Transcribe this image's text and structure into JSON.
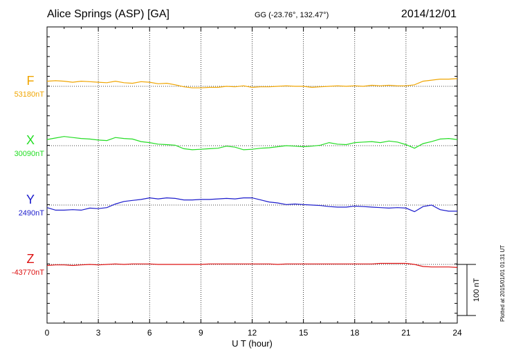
{
  "header": {
    "station": "Alice Springs (ASP)  [GA]",
    "coords": "GG (-23.76°, 132.47°)",
    "date": "2014/12/01"
  },
  "plotted_note": "Plotted at 2015/01/01 01:31  UT",
  "scale_label": "100 nT",
  "chart_data": {
    "type": "line",
    "xlabel": "U T (hour)",
    "xlim": [
      0,
      24
    ],
    "xticks": [
      "0",
      "3",
      "6",
      "9",
      "12",
      "15",
      "18",
      "21",
      "24"
    ],
    "grid": true,
    "scale_bar_nT": 100,
    "series": [
      {
        "name": "F",
        "baseline_label": "53180nT",
        "baseline": 53180,
        "color": "#f0a500",
        "points": [
          [
            0,
            53190
          ],
          [
            0.5,
            53191
          ],
          [
            1,
            53190
          ],
          [
            1.5,
            53188
          ],
          [
            2,
            53190
          ],
          [
            2.5,
            53189
          ],
          [
            3,
            53188
          ],
          [
            3.5,
            53187
          ],
          [
            4,
            53190
          ],
          [
            4.5,
            53187
          ],
          [
            5,
            53186
          ],
          [
            5.5,
            53189
          ],
          [
            6,
            53188
          ],
          [
            6.5,
            53185
          ],
          [
            7,
            53186
          ],
          [
            7.5,
            53183
          ],
          [
            8,
            53179
          ],
          [
            8.5,
            53177
          ],
          [
            9,
            53177
          ],
          [
            9.5,
            53178
          ],
          [
            10,
            53178
          ],
          [
            10.5,
            53180
          ],
          [
            11,
            53179
          ],
          [
            11.5,
            53181
          ],
          [
            12,
            53178
          ],
          [
            12.5,
            53179
          ],
          [
            13,
            53179
          ],
          [
            13.5,
            53180
          ],
          [
            14,
            53181
          ],
          [
            14.5,
            53180
          ],
          [
            15,
            53180
          ],
          [
            15.5,
            53178
          ],
          [
            16,
            53179
          ],
          [
            16.5,
            53180
          ],
          [
            17,
            53181
          ],
          [
            17.5,
            53180
          ],
          [
            18,
            53181
          ],
          [
            18.5,
            53180
          ],
          [
            19,
            53182
          ],
          [
            19.5,
            53181
          ],
          [
            20,
            53182
          ],
          [
            20.5,
            53181
          ],
          [
            21,
            53181
          ],
          [
            21.5,
            53183
          ],
          [
            22,
            53190
          ],
          [
            22.5,
            53192
          ],
          [
            23,
            53194
          ],
          [
            23.5,
            53194
          ],
          [
            24,
            53195
          ]
        ]
      },
      {
        "name": "X",
        "baseline_label": "30090nT",
        "baseline": 30090,
        "color": "#22dd22",
        "points": [
          [
            0,
            30102
          ],
          [
            0.5,
            30105
          ],
          [
            1,
            30108
          ],
          [
            1.5,
            30106
          ],
          [
            2,
            30104
          ],
          [
            2.5,
            30103
          ],
          [
            3,
            30101
          ],
          [
            3.5,
            30100
          ],
          [
            4,
            30106
          ],
          [
            4.5,
            30104
          ],
          [
            5,
            30103
          ],
          [
            5.5,
            30098
          ],
          [
            6,
            30096
          ],
          [
            6.5,
            30093
          ],
          [
            7,
            30092
          ],
          [
            7.5,
            30091
          ],
          [
            8,
            30084
          ],
          [
            8.5,
            30082
          ],
          [
            9,
            30083
          ],
          [
            9.5,
            30084
          ],
          [
            10,
            30085
          ],
          [
            10.5,
            30089
          ],
          [
            11,
            30087
          ],
          [
            11.5,
            30082
          ],
          [
            12,
            30083
          ],
          [
            12.5,
            30085
          ],
          [
            13,
            30086
          ],
          [
            13.5,
            30088
          ],
          [
            14,
            30090
          ],
          [
            14.5,
            30089
          ],
          [
            15,
            30088
          ],
          [
            15.5,
            30089
          ],
          [
            16,
            30091
          ],
          [
            16.5,
            30096
          ],
          [
            17,
            30093
          ],
          [
            17.5,
            30092
          ],
          [
            18,
            30096
          ],
          [
            18.5,
            30097
          ],
          [
            19,
            30098
          ],
          [
            19.5,
            30096
          ],
          [
            20,
            30099
          ],
          [
            20.5,
            30097
          ],
          [
            21,
            30092
          ],
          [
            21.5,
            30085
          ],
          [
            22,
            30094
          ],
          [
            22.5,
            30098
          ],
          [
            23,
            30103
          ],
          [
            23.5,
            30104
          ],
          [
            24,
            30102
          ]
        ]
      },
      {
        "name": "Y",
        "baseline_label": "2490nT",
        "baseline": 2490,
        "color": "#1a1acc",
        "points": [
          [
            0,
            2485
          ],
          [
            0.5,
            2480
          ],
          [
            1,
            2480
          ],
          [
            1.5,
            2481
          ],
          [
            2,
            2480
          ],
          [
            2.5,
            2484
          ],
          [
            3,
            2483
          ],
          [
            3.5,
            2485
          ],
          [
            4,
            2492
          ],
          [
            4.5,
            2497
          ],
          [
            5,
            2499
          ],
          [
            5.5,
            2501
          ],
          [
            6,
            2504
          ],
          [
            6.5,
            2502
          ],
          [
            7,
            2504
          ],
          [
            7.5,
            2503
          ],
          [
            8,
            2500
          ],
          [
            8.5,
            2500
          ],
          [
            9,
            2501
          ],
          [
            9.5,
            2501
          ],
          [
            10,
            2502
          ],
          [
            10.5,
            2503
          ],
          [
            11,
            2502
          ],
          [
            11.5,
            2504
          ],
          [
            12,
            2504
          ],
          [
            12.5,
            2500
          ],
          [
            13,
            2496
          ],
          [
            13.5,
            2494
          ],
          [
            14,
            2491
          ],
          [
            14.5,
            2492
          ],
          [
            15,
            2491
          ],
          [
            15.5,
            2490
          ],
          [
            16,
            2489
          ],
          [
            16.5,
            2487
          ],
          [
            17,
            2486
          ],
          [
            17.5,
            2486
          ],
          [
            18,
            2488
          ],
          [
            18.5,
            2487
          ],
          [
            19,
            2486
          ],
          [
            19.5,
            2485
          ],
          [
            20,
            2484
          ],
          [
            20.5,
            2485
          ],
          [
            21,
            2484
          ],
          [
            21.5,
            2477
          ],
          [
            22,
            2487
          ],
          [
            22.5,
            2490
          ],
          [
            23,
            2481
          ],
          [
            23.5,
            2478
          ],
          [
            24,
            2478
          ]
        ]
      },
      {
        "name": "Z",
        "baseline_label": "-43770nT",
        "baseline": -43770,
        "color": "#dd1111",
        "points": [
          [
            0,
            -43772
          ],
          [
            0.5,
            -43771
          ],
          [
            1,
            -43771
          ],
          [
            1.5,
            -43772
          ],
          [
            2,
            -43771
          ],
          [
            2.5,
            -43770
          ],
          [
            3,
            -43771
          ],
          [
            3.5,
            -43770
          ],
          [
            4,
            -43769
          ],
          [
            4.5,
            -43770
          ],
          [
            5,
            -43769
          ],
          [
            5.5,
            -43769
          ],
          [
            6,
            -43769
          ],
          [
            6.5,
            -43770
          ],
          [
            7,
            -43770
          ],
          [
            7.5,
            -43770
          ],
          [
            8,
            -43770
          ],
          [
            8.5,
            -43770
          ],
          [
            9,
            -43770
          ],
          [
            9.5,
            -43769
          ],
          [
            10,
            -43769
          ],
          [
            10.5,
            -43769
          ],
          [
            11,
            -43769
          ],
          [
            11.5,
            -43769
          ],
          [
            12,
            -43769
          ],
          [
            12.5,
            -43769
          ],
          [
            13,
            -43769
          ],
          [
            13.5,
            -43770
          ],
          [
            14,
            -43769
          ],
          [
            14.5,
            -43769
          ],
          [
            15,
            -43769
          ],
          [
            15.5,
            -43769
          ],
          [
            16,
            -43769
          ],
          [
            16.5,
            -43769
          ],
          [
            17,
            -43769
          ],
          [
            17.5,
            -43769
          ],
          [
            18,
            -43769
          ],
          [
            18.5,
            -43769
          ],
          [
            19,
            -43769
          ],
          [
            19.5,
            -43768
          ],
          [
            20,
            -43768
          ],
          [
            20.5,
            -43768
          ],
          [
            21,
            -43768
          ],
          [
            21.5,
            -43770
          ],
          [
            22,
            -43774
          ],
          [
            22.5,
            -43775
          ],
          [
            23,
            -43775
          ],
          [
            23.5,
            -43775
          ],
          [
            24,
            -43776
          ]
        ]
      }
    ]
  }
}
